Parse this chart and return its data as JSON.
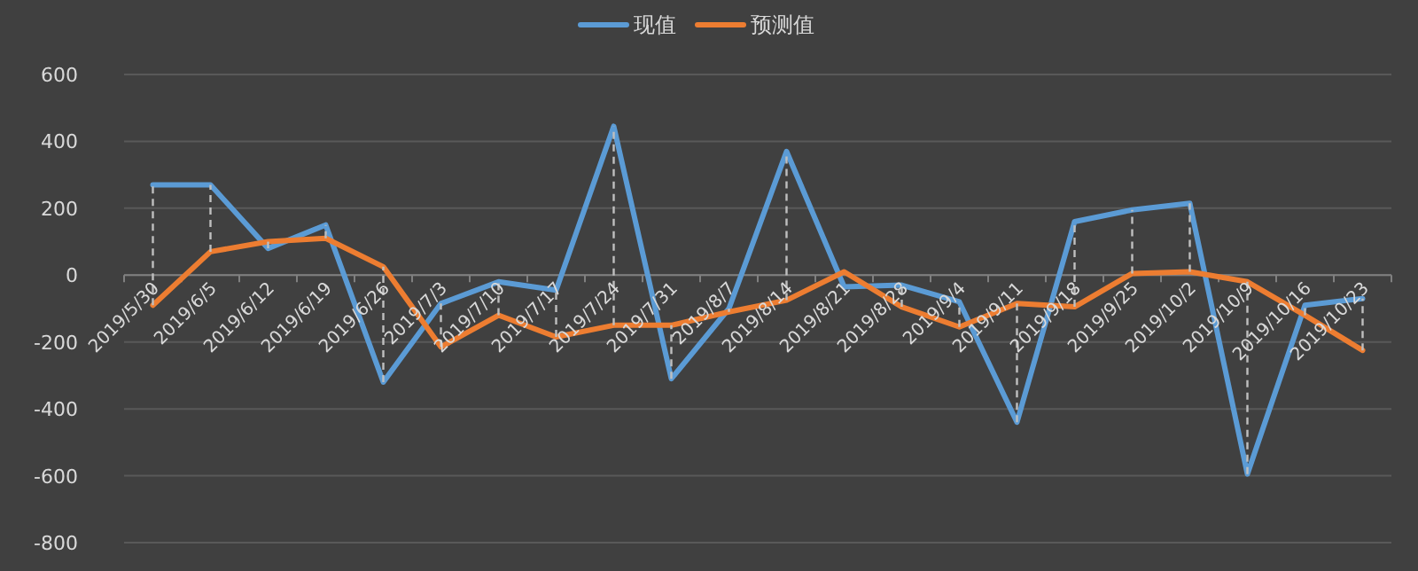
{
  "chart_data": {
    "type": "line",
    "categories": [
      "2019/5/30",
      "2019/6/5",
      "2019/6/12",
      "2019/6/19",
      "2019/6/26",
      "2019/7/3",
      "2019/7/10",
      "2019/7/17",
      "2019/7/24",
      "2019/7/31",
      "2019/8/7",
      "2019/8/14",
      "2019/8/21",
      "2019/8/28",
      "2019/9/4",
      "2019/9/11",
      "2019/9/18",
      "2019/9/25",
      "2019/10/2",
      "2019/10/9",
      "2019/10/16",
      "2019/10/23"
    ],
    "series": [
      {
        "name": "现值",
        "color": "#5b9bd5",
        "values": [
          270,
          270,
          80,
          150,
          -320,
          -85,
          -20,
          -45,
          445,
          -310,
          -100,
          370,
          -35,
          -30,
          -80,
          -440,
          160,
          195,
          215,
          -595,
          -90,
          -70
        ],
        "errors": [
          [
            -90,
            270
          ],
          [
            70,
            270
          ],
          [
            80,
            100
          ],
          [
            110,
            150
          ],
          [
            -320,
            25
          ],
          [
            -215,
            -85
          ],
          [
            -120,
            -20
          ],
          [
            -185,
            -45
          ],
          [
            -150,
            445
          ],
          [
            -310,
            -150
          ],
          [
            -110,
            -100
          ],
          [
            -75,
            370
          ],
          null,
          [
            -95,
            -30
          ],
          [
            -155,
            -80
          ],
          [
            -440,
            -85
          ],
          [
            -95,
            160
          ],
          [
            5,
            195
          ],
          [
            10,
            215
          ],
          [
            -595,
            -20
          ],
          [
            -120,
            -90
          ],
          [
            -225,
            -70
          ]
        ]
      },
      {
        "name": "预测值",
        "color": "#ed7d31",
        "values": [
          -90,
          70,
          100,
          110,
          25,
          -215,
          -120,
          -185,
          -150,
          -150,
          -110,
          -75,
          10,
          -95,
          -155,
          -85,
          -95,
          5,
          10,
          -20,
          -120,
          -225
        ]
      }
    ],
    "ylim": [
      -800,
      600
    ],
    "yticks": [
      -800,
      -600,
      -400,
      -200,
      0,
      200,
      400,
      600
    ],
    "grid": "y",
    "legend": "top"
  }
}
